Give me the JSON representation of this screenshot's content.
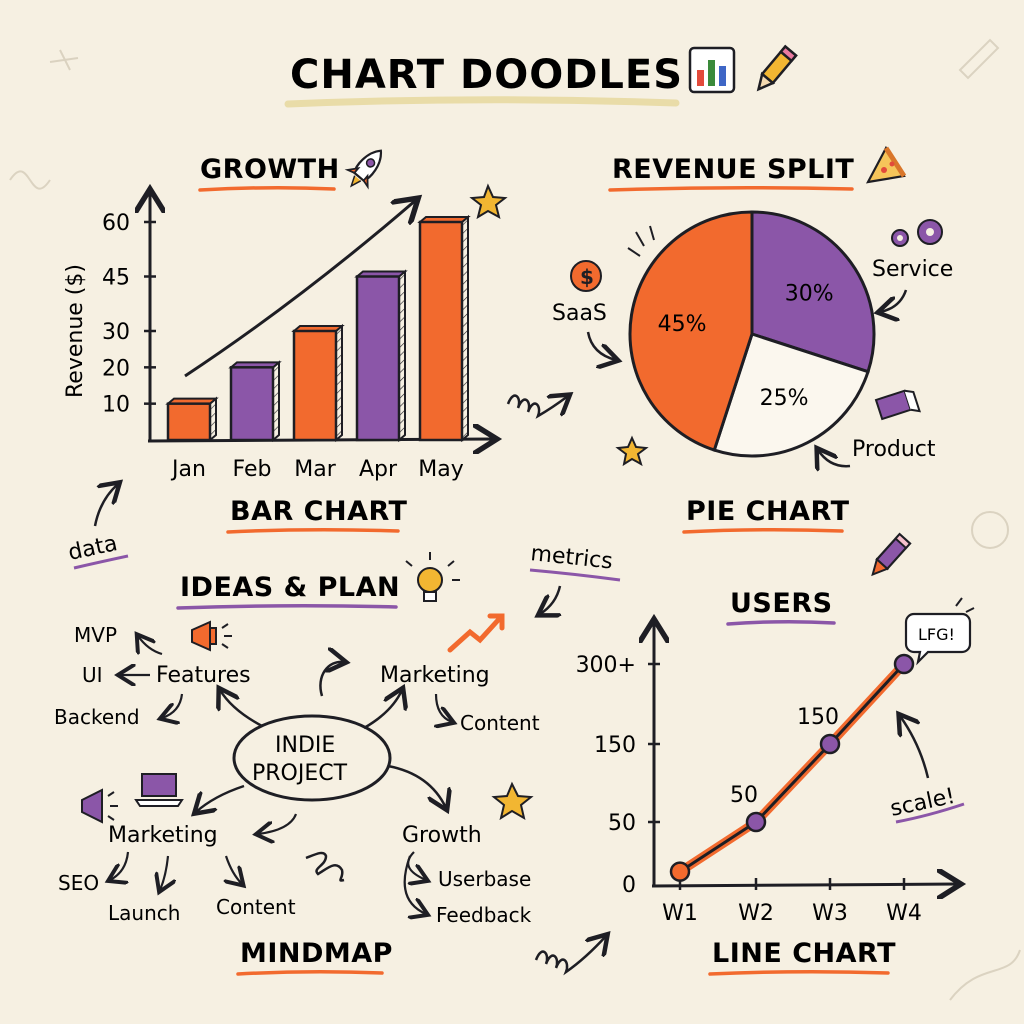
{
  "page": {
    "title": "CHART DOODLES",
    "title_icons": [
      "bar-chart-emoji-icon",
      "pencil-icon"
    ]
  },
  "colors": {
    "orange": "#f26a2e",
    "purple": "#8b56a8",
    "ink": "#1e1e24",
    "star": "#f2b632",
    "paper": "#f6f0e2"
  },
  "bar_section": {
    "heading": "GROWTH",
    "caption": "BAR CHART",
    "note": "data"
  },
  "pie_section": {
    "heading": "REVENUE SPLIT",
    "caption": "PIE CHART"
  },
  "mindmap": {
    "heading": "IDEAS & PLAN",
    "caption": "MINDMAP",
    "center": [
      "INDIE",
      "PROJECT"
    ],
    "note_metrics": "metrics",
    "nodes": {
      "features": "Features",
      "mvp": "MVP",
      "ui": "UI",
      "backend": "Backend",
      "marketing_top": "Marketing",
      "content_top": "Content",
      "marketing_bottom": "Marketing",
      "seo": "SEO",
      "launch": "Launch",
      "content_bottom": "Content",
      "growth": "Growth",
      "userbase": "Userbase",
      "feedback": "Feedback"
    }
  },
  "line_section": {
    "heading": "USERS",
    "caption": "LINE CHART",
    "bubble": "LFG!",
    "note": "scale!"
  },
  "chart_data": [
    {
      "type": "bar",
      "title": "GROWTH",
      "categories": [
        "Jan",
        "Feb",
        "Mar",
        "Apr",
        "May"
      ],
      "values": [
        10,
        20,
        30,
        45,
        60
      ],
      "ylabel": "Revenue ($)",
      "yticks": [
        "10",
        "20",
        "30",
        "45",
        "60"
      ],
      "ylim": [
        0,
        60
      ],
      "bar_colors": [
        "#f26a2e",
        "#8b56a8",
        "#f26a2e",
        "#8b56a8",
        "#f26a2e"
      ],
      "grid": false
    },
    {
      "type": "pie",
      "title": "REVENUE SPLIT",
      "slices": [
        {
          "label": "SaaS",
          "value": 45,
          "display": "45%",
          "color": "#f26a2e"
        },
        {
          "label": "Service",
          "value": 30,
          "display": "30%",
          "color": "#8b56a8"
        },
        {
          "label": "Product",
          "value": 25,
          "display": "25%",
          "color": "#fbf7ee"
        }
      ]
    },
    {
      "type": "line",
      "title": "USERS",
      "x": [
        "W1",
        "W2",
        "W3",
        "W4"
      ],
      "values": [
        10,
        50,
        150,
        300
      ],
      "point_labels": [
        "",
        "50",
        "150",
        ""
      ],
      "yticks": [
        "0",
        "50",
        "150",
        "300+"
      ],
      "ytick_values": [
        0,
        50,
        150,
        300
      ],
      "grid": false
    }
  ]
}
